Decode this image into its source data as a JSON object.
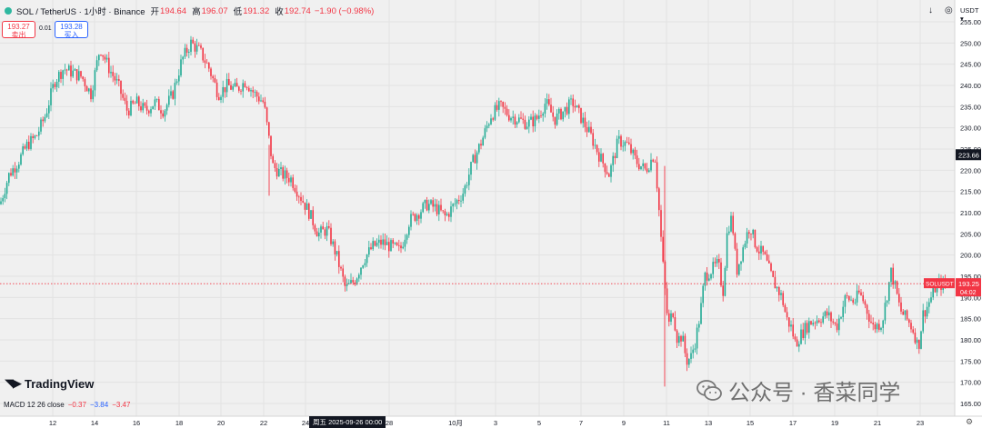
{
  "header": {
    "symbol": "SOL / TetherUS · 1小时 · Binance",
    "open_label": "开",
    "open": "194.64",
    "high_label": "高",
    "high": "196.07",
    "low_label": "低",
    "low": "191.32",
    "close_label": "收",
    "close": "192.74",
    "change": "−1.90 (−0.98%)"
  },
  "trade": {
    "sell_price": "193.27",
    "sell_label": "卖出",
    "spread": "0.01",
    "buy_price": "193.28",
    "buy_label": "买入"
  },
  "toolbar": {
    "download_icon": "down-arrow-icon",
    "camera_icon": "camera-icon",
    "currency": "USDT"
  },
  "brand": {
    "name": "TradingView"
  },
  "indicator": {
    "label": "MACD 12 26 close",
    "v1": "−0.37",
    "v2": "−3.84",
    "v3": "−3.47"
  },
  "watermark": {
    "text": "公众号 · 香菜同学"
  },
  "cursor": {
    "date_label": "周五 2025-09-26   00:00"
  },
  "colors": {
    "up": "#22ab94",
    "down": "#f23645",
    "background": "#f0f0f0",
    "grid": "#e2e2e2"
  },
  "chart_data": {
    "type": "candlestick",
    "timeframe": "1h",
    "ylim": [
      162,
      258
    ],
    "y_ticks": [
      165,
      170,
      175,
      180,
      185,
      190,
      195,
      200,
      205,
      210,
      215,
      220,
      225,
      230,
      235,
      240,
      245,
      250,
      255
    ],
    "x_ticks": [
      "12",
      "14",
      "16",
      "18",
      "20",
      "22",
      "24",
      "28",
      "10月",
      "3",
      "5",
      "7",
      "9",
      "11",
      "13",
      "15",
      "17",
      "19",
      "21",
      "23"
    ],
    "price_labels": [
      {
        "value": 223.66,
        "text": "223.66",
        "style": "dark"
      },
      {
        "value": 193.25,
        "text": "193.25",
        "sub": "04:02",
        "name": "SOLUSDT",
        "style": "red"
      }
    ],
    "current_price": 193.25,
    "close_path": [
      [
        0,
        212
      ],
      [
        10,
        219
      ],
      [
        20,
        222
      ],
      [
        30,
        226
      ],
      [
        40,
        228
      ],
      [
        50,
        233
      ],
      [
        60,
        241
      ],
      [
        70,
        244
      ],
      [
        80,
        243
      ],
      [
        90,
        242
      ],
      [
        100,
        238
      ],
      [
        110,
        249
      ],
      [
        120,
        244
      ],
      [
        130,
        240
      ],
      [
        140,
        234
      ],
      [
        150,
        236
      ],
      [
        160,
        234
      ],
      [
        170,
        236
      ],
      [
        180,
        234
      ],
      [
        190,
        238
      ],
      [
        200,
        246
      ],
      [
        210,
        250
      ],
      [
        220,
        248
      ],
      [
        230,
        244
      ],
      [
        240,
        238
      ],
      [
        250,
        240
      ],
      [
        260,
        239
      ],
      [
        270,
        241
      ],
      [
        280,
        238
      ],
      [
        290,
        236
      ],
      [
        300,
        221
      ],
      [
        310,
        219
      ],
      [
        320,
        218
      ],
      [
        330,
        214
      ],
      [
        340,
        210
      ],
      [
        350,
        205
      ],
      [
        360,
        206
      ],
      [
        370,
        200
      ],
      [
        380,
        192
      ],
      [
        390,
        194
      ],
      [
        400,
        199
      ],
      [
        410,
        202
      ],
      [
        420,
        203
      ],
      [
        430,
        202
      ],
      [
        440,
        201
      ],
      [
        450,
        208
      ],
      [
        460,
        210
      ],
      [
        470,
        212
      ],
      [
        480,
        211
      ],
      [
        490,
        209
      ],
      [
        500,
        212
      ],
      [
        510,
        215
      ],
      [
        520,
        222
      ],
      [
        530,
        227
      ],
      [
        540,
        233
      ],
      [
        550,
        235
      ],
      [
        560,
        233
      ],
      [
        570,
        232
      ],
      [
        580,
        231
      ],
      [
        590,
        232
      ],
      [
        600,
        236
      ],
      [
        610,
        232
      ],
      [
        620,
        234
      ],
      [
        630,
        236
      ],
      [
        640,
        232
      ],
      [
        650,
        228
      ],
      [
        660,
        223
      ],
      [
        670,
        219
      ],
      [
        680,
        227
      ],
      [
        690,
        226
      ],
      [
        700,
        222
      ],
      [
        710,
        220
      ],
      [
        720,
        224
      ],
      [
        725,
        210
      ],
      [
        730,
        195
      ],
      [
        735,
        183
      ],
      [
        740,
        187
      ],
      [
        745,
        180
      ],
      [
        750,
        181
      ],
      [
        755,
        175
      ],
      [
        760,
        176
      ],
      [
        765,
        180
      ],
      [
        770,
        186
      ],
      [
        775,
        195
      ],
      [
        780,
        196
      ],
      [
        790,
        198
      ],
      [
        795,
        191
      ],
      [
        800,
        206
      ],
      [
        805,
        209
      ],
      [
        810,
        196
      ],
      [
        815,
        200
      ],
      [
        820,
        204
      ],
      [
        825,
        207
      ],
      [
        830,
        203
      ],
      [
        835,
        201
      ],
      [
        840,
        200
      ],
      [
        850,
        194
      ],
      [
        860,
        190
      ],
      [
        865,
        185
      ],
      [
        870,
        183
      ],
      [
        875,
        179
      ],
      [
        880,
        181
      ],
      [
        890,
        184
      ],
      [
        900,
        185
      ],
      [
        910,
        186
      ],
      [
        920,
        183
      ],
      [
        930,
        190
      ],
      [
        940,
        189
      ],
      [
        945,
        191
      ],
      [
        950,
        189
      ],
      [
        960,
        183
      ],
      [
        970,
        184
      ],
      [
        980,
        196
      ],
      [
        985,
        192
      ],
      [
        990,
        187
      ],
      [
        1000,
        184
      ],
      [
        1005,
        182
      ],
      [
        1010,
        178
      ],
      [
        1015,
        186
      ],
      [
        1020,
        188
      ],
      [
        1030,
        193
      ],
      [
        1040,
        193
      ]
    ]
  }
}
